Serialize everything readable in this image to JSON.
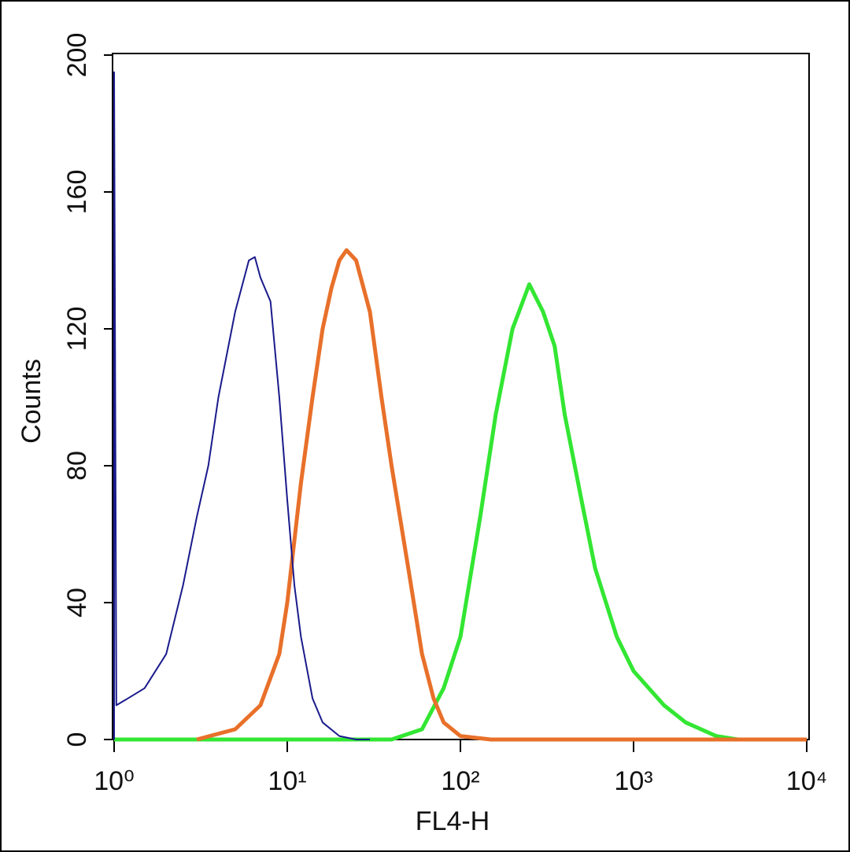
{
  "chart_data": {
    "type": "line",
    "xlabel": "FL4-H",
    "ylabel": "Counts",
    "xscale": "log",
    "xlim": [
      1,
      10000
    ],
    "ylim": [
      0,
      200
    ],
    "xticks": [
      {
        "value": 1,
        "label": "10⁰"
      },
      {
        "value": 10,
        "label": "10¹"
      },
      {
        "value": 100,
        "label": "10²"
      },
      {
        "value": 1000,
        "label": "10³"
      },
      {
        "value": 10000,
        "label": "10⁴"
      }
    ],
    "yticks": [
      0,
      40,
      80,
      120,
      160,
      200
    ],
    "series": [
      {
        "color": "#1a1a8c",
        "width": 2,
        "x": [
          1,
          1,
          1.03,
          1.2,
          1.5,
          2,
          2.5,
          3,
          3.5,
          4,
          5,
          6,
          6.5,
          7,
          8,
          9,
          10,
          11,
          12,
          14,
          16,
          20,
          25,
          30
        ],
        "values": [
          0,
          195,
          10,
          12,
          15,
          25,
          45,
          65,
          80,
          100,
          125,
          140,
          141,
          135,
          128,
          100,
          70,
          45,
          30,
          12,
          5,
          1,
          0,
          0
        ]
      },
      {
        "color": "#e8702a",
        "width": 5,
        "x": [
          3,
          5,
          7,
          9,
          10,
          12,
          14,
          16,
          18,
          20,
          22,
          25,
          30,
          35,
          40,
          50,
          60,
          70,
          80,
          100,
          150,
          10000
        ],
        "values": [
          0,
          3,
          10,
          25,
          40,
          75,
          100,
          120,
          132,
          140,
          143,
          140,
          125,
          100,
          80,
          50,
          25,
          12,
          5,
          1,
          0,
          0
        ]
      },
      {
        "color": "#33e633",
        "width": 5,
        "x": [
          1,
          40,
          60,
          80,
          100,
          130,
          160,
          200,
          250,
          300,
          350,
          400,
          500,
          600,
          800,
          1000,
          1500,
          2000,
          3000,
          4000,
          10000
        ],
        "values": [
          0,
          0,
          3,
          15,
          30,
          65,
          95,
          120,
          133,
          125,
          115,
          95,
          70,
          50,
          30,
          20,
          10,
          5,
          1,
          0,
          0
        ]
      }
    ]
  }
}
